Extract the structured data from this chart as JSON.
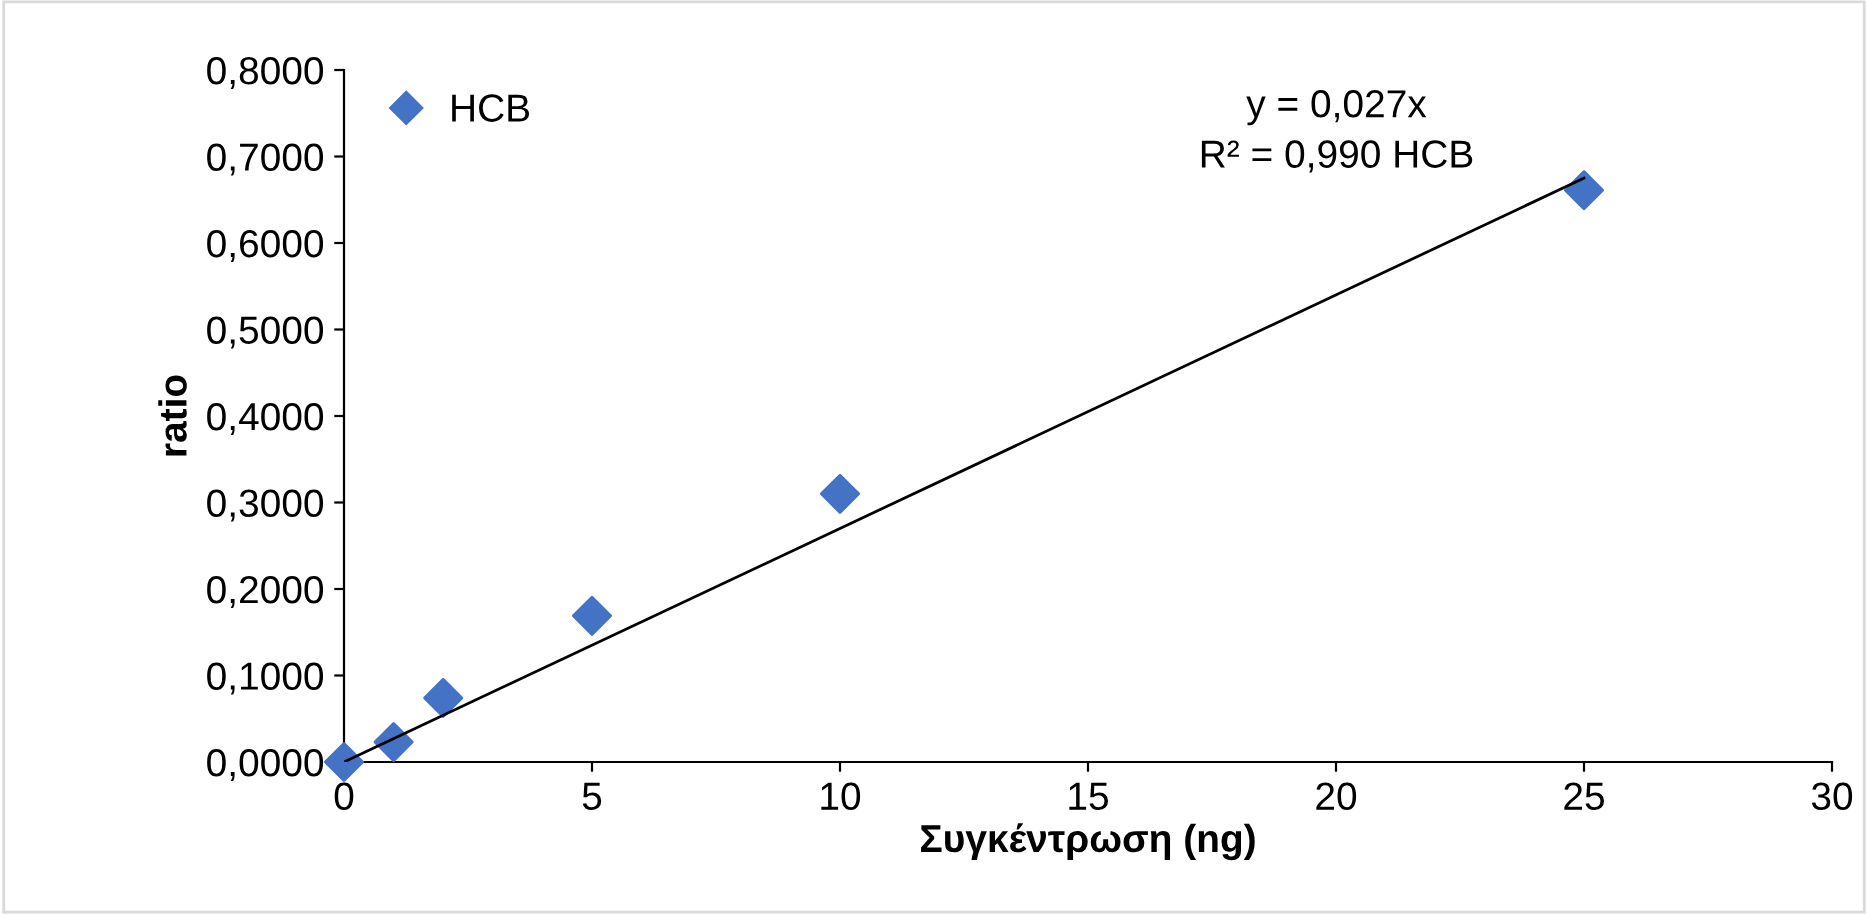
{
  "chart_data": {
    "type": "scatter",
    "xlabel": "Συγκέντρωση (ng)",
    "ylabel": "ratio",
    "series": [
      {
        "name": "HCB",
        "color": "#4472c4",
        "marker": "diamond",
        "x": [
          0,
          1,
          2,
          5,
          10,
          25
        ],
        "values": [
          0.0,
          0.023,
          0.074,
          0.169,
          0.31,
          0.661
        ]
      },
      {
        "type": "line",
        "color": "#000000",
        "marker": "none",
        "line_style": "solid",
        "x": [
          0,
          25
        ],
        "values": [
          0,
          0.675
        ]
      }
    ],
    "annotations": [
      "y = 0,027x\nR² = 0,990 HCB"
    ],
    "xlim": [
      0,
      30
    ],
    "xticks": [
      0,
      5,
      10,
      15,
      20,
      25,
      30
    ],
    "ylim": [
      0,
      0.8
    ],
    "yticks": [
      {
        "value": 0,
        "label": "0,0000"
      },
      {
        "value": 0.1,
        "label": "0,1000"
      },
      {
        "value": 0.2,
        "label": "0,2000"
      },
      {
        "value": 0.3,
        "label": "0,3000"
      },
      {
        "value": 0.4,
        "label": "0,4000"
      },
      {
        "value": 0.5,
        "label": "0,5000"
      },
      {
        "value": 0.6,
        "label": "0,6000"
      },
      {
        "value": 0.7,
        "label": "0,7000"
      },
      {
        "value": 0.8,
        "label": "0,8000"
      }
    ],
    "grid": false,
    "legend": "top left"
  }
}
